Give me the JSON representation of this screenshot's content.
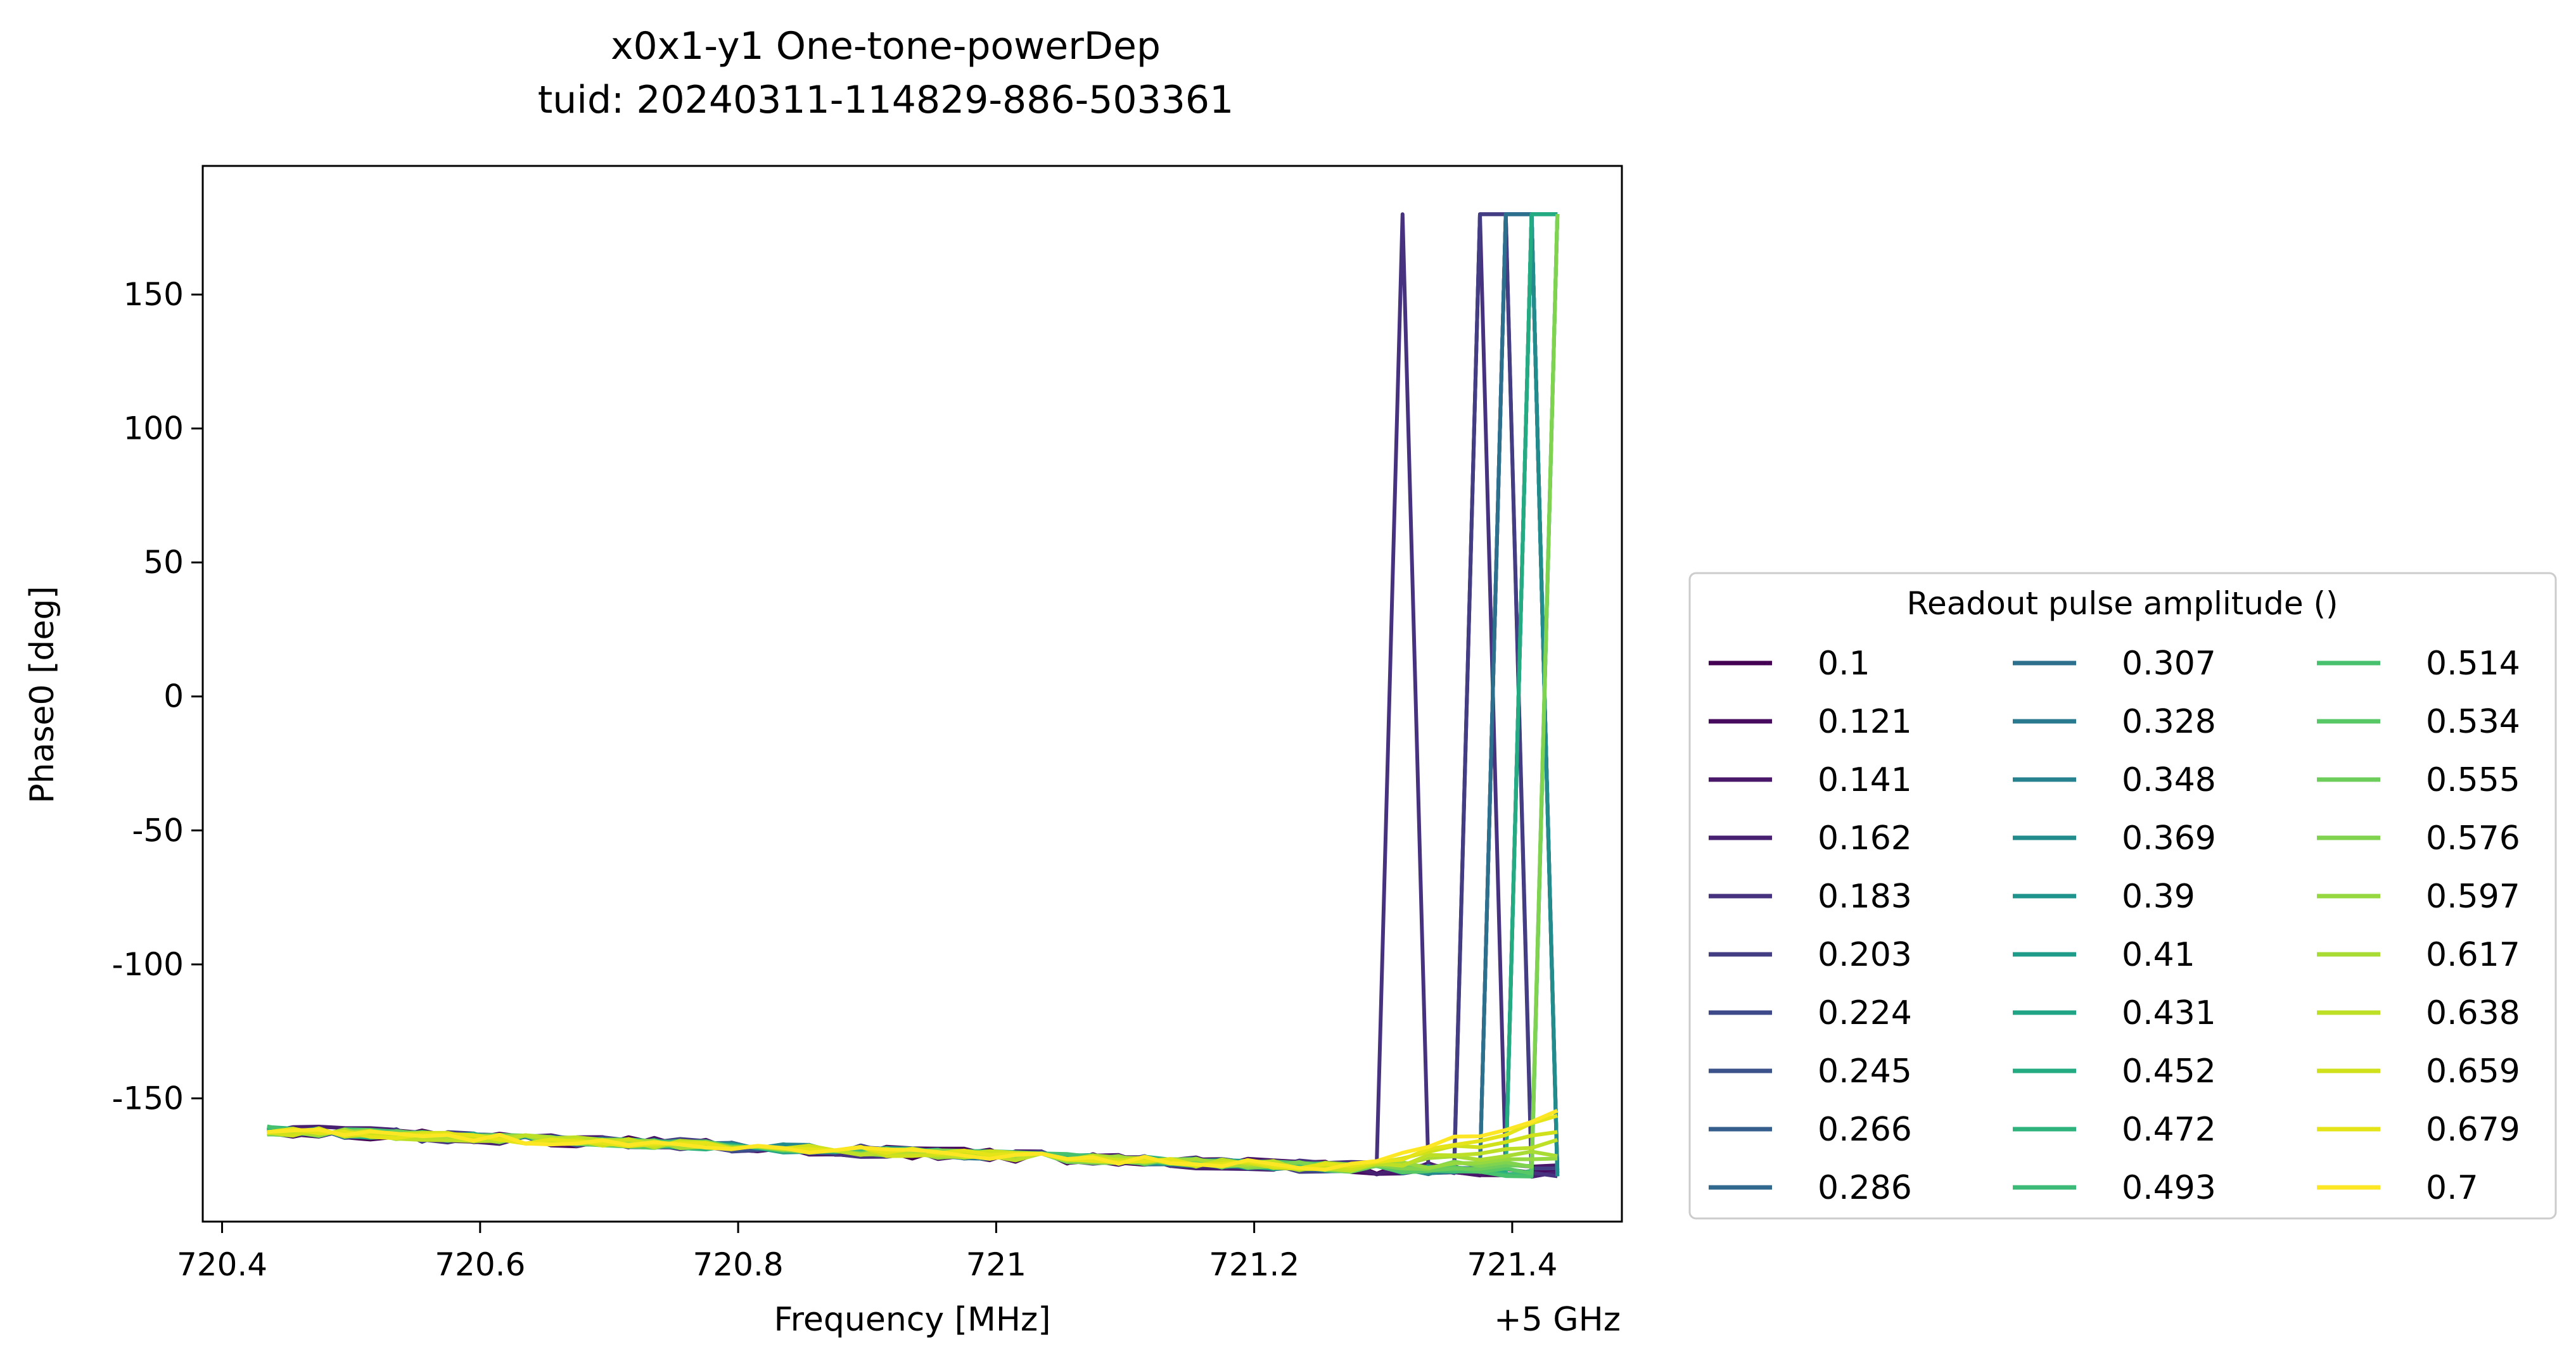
{
  "chart_data": {
    "type": "line",
    "title": "x0x1-y1 One-tone-powerDep",
    "subtitle": "tuid: 20240311-114829-886-503361",
    "xlabel": "Frequency [MHz]",
    "x_offset_label": "+5 GHz",
    "ylabel": "Phase0 [deg]",
    "xlim": [
      720.385,
      721.485
    ],
    "ylim": [
      -196,
      198
    ],
    "xticks": [
      720.4,
      720.6,
      720.8,
      721,
      721.2,
      721.4
    ],
    "xtick_labels": [
      "720.4",
      "720.6",
      "720.8",
      "721",
      "721.2",
      "721.4"
    ],
    "yticks": [
      150,
      100,
      50,
      0,
      -50,
      -100,
      -150
    ],
    "ytick_labels": [
      "150",
      "100",
      "50",
      "0",
      "-50",
      "-100",
      "-150"
    ],
    "grid": false,
    "legend_title": "Readout pulse amplitude ()",
    "legend_placement": "right, outside plot, lower",
    "x_range": [
      720.435,
      721.435
    ],
    "x_points": 51,
    "series": [
      {
        "name": "0.1",
        "color": "#440154",
        "y_start": -162,
        "y_end": -177,
        "jumps": []
      },
      {
        "name": "0.121",
        "color": "#460b5e",
        "y_start": -162,
        "y_end": -177,
        "jumps": []
      },
      {
        "name": "0.141",
        "color": "#481769",
        "y_start": -162,
        "y_end": -177,
        "jumps": []
      },
      {
        "name": "0.162",
        "color": "#472072",
        "y_start": -162,
        "y_end": -178,
        "jumps": [
          [
            721.385,
            180
          ]
        ]
      },
      {
        "name": "0.183",
        "color": "#46327e",
        "y_start": -162,
        "y_end": -178,
        "jumps": [
          [
            721.315,
            180
          ],
          [
            721.365,
            180
          ]
        ]
      },
      {
        "name": "0.203",
        "color": "#433d84",
        "y_start": -162,
        "y_end": -178,
        "jumps": [
          [
            721.385,
            180
          ]
        ]
      },
      {
        "name": "0.224",
        "color": "#3e4989",
        "y_start": -162,
        "y_end": -178,
        "jumps": [
          [
            721.405,
            180
          ]
        ]
      },
      {
        "name": "0.245",
        "color": "#3b528b",
        "y_start": -162,
        "y_end": -178,
        "jumps": [
          [
            721.405,
            180
          ]
        ]
      },
      {
        "name": "0.266",
        "color": "#355e8d",
        "y_start": -162,
        "y_end": -178,
        "jumps": [
          [
            721.405,
            180
          ]
        ]
      },
      {
        "name": "0.286",
        "color": "#31688e",
        "y_start": -162,
        "y_end": -178,
        "jumps": [
          [
            721.405,
            180
          ]
        ]
      },
      {
        "name": "0.307",
        "color": "#2d708e",
        "y_start": -162,
        "y_end": -178,
        "jumps": [
          [
            721.405,
            180
          ]
        ]
      },
      {
        "name": "0.328",
        "color": "#297a8e",
        "y_start": -162,
        "y_end": -178,
        "jumps": [
          [
            721.415,
            180
          ]
        ]
      },
      {
        "name": "0.348",
        "color": "#26828e",
        "y_start": -162,
        "y_end": -178,
        "jumps": [
          [
            721.415,
            180
          ]
        ]
      },
      {
        "name": "0.369",
        "color": "#228c8d",
        "y_start": -162,
        "y_end": -178,
        "jumps": [
          [
            721.415,
            180
          ]
        ]
      },
      {
        "name": "0.39",
        "color": "#1f948c",
        "y_start": -162,
        "y_end": -178,
        "jumps": [
          [
            721.425,
            180
          ]
        ]
      },
      {
        "name": "0.41",
        "color": "#1e9c89",
        "y_start": -162,
        "y_end": -178,
        "jumps": [
          [
            721.425,
            180
          ]
        ]
      },
      {
        "name": "0.431",
        "color": "#20a486",
        "y_start": -162,
        "y_end": -178,
        "jumps": [
          [
            721.425,
            180
          ]
        ]
      },
      {
        "name": "0.452",
        "color": "#25ab82",
        "y_start": -162,
        "y_end": -178,
        "jumps": [
          [
            721.425,
            180
          ]
        ]
      },
      {
        "name": "0.472",
        "color": "#2eb37c",
        "y_start": -162,
        "y_end": -178,
        "jumps": [
          [
            721.435,
            180
          ]
        ]
      },
      {
        "name": "0.493",
        "color": "#3aba76",
        "y_start": -162,
        "y_end": -178,
        "jumps": [
          [
            721.435,
            180
          ]
        ]
      },
      {
        "name": "0.514",
        "color": "#48c16e",
        "y_start": -162,
        "y_end": -178,
        "jumps": [
          [
            721.435,
            180
          ]
        ]
      },
      {
        "name": "0.534",
        "color": "#58c765",
        "y_start": -162,
        "y_end": -178,
        "jumps": [
          [
            721.435,
            180
          ]
        ]
      },
      {
        "name": "0.555",
        "color": "#6ccd5a",
        "y_start": -162,
        "y_end": -176,
        "jumps": [
          [
            721.435,
            180
          ]
        ]
      },
      {
        "name": "0.576",
        "color": "#7fd34e",
        "y_start": -162,
        "y_end": -174,
        "jumps": [
          [
            721.435,
            180
          ]
        ]
      },
      {
        "name": "0.597",
        "color": "#95d840",
        "y_start": -162,
        "y_end": -172,
        "jumps": []
      },
      {
        "name": "0.617",
        "color": "#a8db34",
        "y_start": -162,
        "y_end": -170,
        "jumps": []
      },
      {
        "name": "0.638",
        "color": "#bddf26",
        "y_start": -162,
        "y_end": -166,
        "jumps": []
      },
      {
        "name": "0.659",
        "color": "#d0e11c",
        "y_start": -162,
        "y_end": -162,
        "jumps": []
      },
      {
        "name": "0.679",
        "color": "#e5e419",
        "y_start": -162,
        "y_end": -158,
        "jumps": []
      },
      {
        "name": "0.7",
        "color": "#fde725",
        "y_start": -162,
        "y_end": -155,
        "jumps": []
      }
    ]
  }
}
